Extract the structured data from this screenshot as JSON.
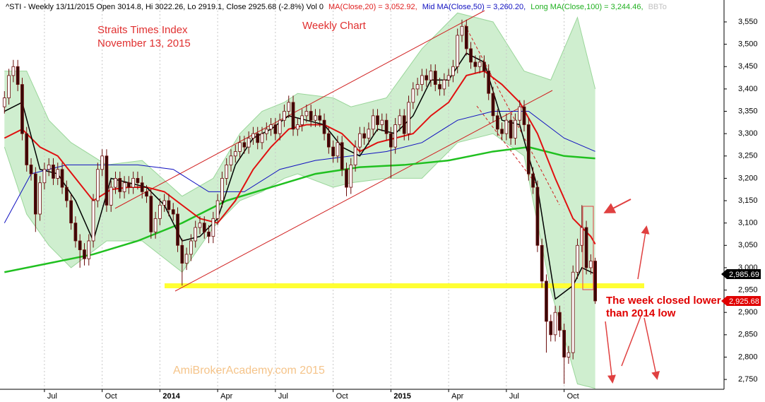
{
  "chart_data": {
    "type": "candlestick",
    "header": [
      {
        "text": "^STI - Weekly 13/11/2015 Open 3014.8, Hi 3022.26, Lo 2919.1, Close 2925.68 (-2.8%) Vol 0",
        "color": "#000000"
      },
      {
        "text": "MA(Close,20) = 3,052.92,",
        "color": "#e02020"
      },
      {
        "text": "Mid MA(Close,50) = 3,260.20,",
        "color": "#1010c0"
      },
      {
        "text": "Long MA(Close,100) = 3,244.46,",
        "color": "#20b020"
      },
      {
        "text": "BBTo",
        "color": "#c0c0c0"
      }
    ],
    "annotations": [
      "Straits Times Index",
      "November 13, 2015",
      "Weekly Chart",
      "The week closed lower",
      "than 2014 low",
      "AmiBrokerAcademy.com 2015"
    ],
    "xlim": [
      -1,
      162
    ],
    "ylim": [
      2728,
      3599
    ],
    "xticks": [
      {
        "value": 9,
        "label": "Jul"
      },
      {
        "value": 22,
        "label": "Oct"
      },
      {
        "value": 35,
        "label": "2014"
      },
      {
        "value": 48,
        "label": "Apr"
      },
      {
        "value": 61,
        "label": "Jul"
      },
      {
        "value": 74,
        "label": "Oct"
      },
      {
        "value": 87,
        "label": "2015"
      },
      {
        "value": 100,
        "label": "Apr"
      },
      {
        "value": 113,
        "label": "Jul"
      },
      {
        "value": 126,
        "label": "Oct"
      }
    ],
    "yticks": [
      {
        "value": 2750,
        "label": "2,750"
      },
      {
        "value": 2800,
        "label": "2,800"
      },
      {
        "value": 2850,
        "label": "2,850"
      },
      {
        "value": 2900,
        "label": "2,900"
      },
      {
        "value": 2950,
        "label": "2,950"
      },
      {
        "value": 3000,
        "label": "3,000"
      },
      {
        "value": 3050,
        "label": "3,050"
      },
      {
        "value": 3100,
        "label": "3,100"
      },
      {
        "value": 3150,
        "label": "3,150"
      },
      {
        "value": 3200,
        "label": "3,200"
      },
      {
        "value": 3250,
        "label": "3,250"
      },
      {
        "value": 3300,
        "label": "3,300"
      },
      {
        "value": 3350,
        "label": "3,350"
      },
      {
        "value": 3400,
        "label": "3,400"
      },
      {
        "value": 3450,
        "label": "3,450"
      },
      {
        "value": 3500,
        "label": "3,500"
      },
      {
        "value": 3550,
        "label": "3,550"
      }
    ],
    "price_labels": [
      {
        "value": 2985.69,
        "label": "2,985.69",
        "color": "#000000"
      },
      {
        "value": 2925.68,
        "label": "2,925.68",
        "color": "#e00000"
      }
    ],
    "candles": {
      "up_color": "#ffffff",
      "down_color": "#3a0808",
      "edge_color": "#6a0a0a",
      "open": [
        3360,
        3380,
        3430,
        3450,
        3410,
        3300,
        3230,
        3210,
        3120,
        3190,
        3220,
        3230,
        3200,
        3220,
        3180,
        3150,
        3100,
        3060,
        3040,
        3020,
        3060,
        3150,
        3220,
        3250,
        3140,
        3180,
        3200,
        3170,
        3190,
        3180,
        3200,
        3190,
        3170,
        3160,
        3080,
        3110,
        3140,
        3150,
        3130,
        3120,
        3050,
        3010,
        3030,
        3060,
        3090,
        3100,
        3080,
        3070,
        3110,
        3150,
        3200,
        3230,
        3250,
        3260,
        3280,
        3270,
        3290,
        3300,
        3280,
        3300,
        3310,
        3320,
        3300,
        3330,
        3350,
        3370,
        3310,
        3320,
        3340,
        3350,
        3330,
        3340,
        3330,
        3300,
        3270,
        3250,
        3280,
        3220,
        3180,
        3230,
        3270,
        3300,
        3290,
        3310,
        3340,
        3320,
        3330,
        3300,
        3270,
        3320,
        3340,
        3300,
        3370,
        3400,
        3410,
        3430,
        3420,
        3440,
        3410,
        3400,
        3420,
        3430,
        3450,
        3520,
        3540,
        3490,
        3460,
        3450,
        3460,
        3440,
        3390,
        3340,
        3310,
        3300,
        3330,
        3290,
        3330,
        3360,
        3320,
        3210,
        3180,
        3050,
        2970,
        2880,
        2850,
        2900,
        2860,
        2800,
        2810,
        2990,
        3050,
        3090,
        3000,
        3014.8
      ],
      "high": [
        3395,
        3445,
        3465,
        3465,
        3425,
        3315,
        3245,
        3225,
        3205,
        3235,
        3245,
        3245,
        3235,
        3235,
        3195,
        3165,
        3115,
        3075,
        3055,
        3075,
        3165,
        3235,
        3265,
        3265,
        3195,
        3215,
        3215,
        3205,
        3205,
        3215,
        3215,
        3205,
        3185,
        3175,
        3125,
        3155,
        3165,
        3165,
        3145,
        3135,
        3065,
        3045,
        3075,
        3105,
        3115,
        3115,
        3095,
        3125,
        3165,
        3215,
        3245,
        3265,
        3275,
        3295,
        3295,
        3305,
        3315,
        3315,
        3315,
        3325,
        3335,
        3335,
        3345,
        3365,
        3385,
        3385,
        3335,
        3355,
        3365,
        3365,
        3355,
        3355,
        3345,
        3315,
        3285,
        3295,
        3295,
        3235,
        3245,
        3285,
        3315,
        3315,
        3325,
        3355,
        3355,
        3345,
        3345,
        3315,
        3335,
        3355,
        3355,
        3385,
        3415,
        3425,
        3445,
        3445,
        3455,
        3455,
        3425,
        3435,
        3445,
        3465,
        3535,
        3555,
        3555,
        3505,
        3475,
        3475,
        3475,
        3455,
        3405,
        3355,
        3325,
        3345,
        3345,
        3345,
        3375,
        3375,
        3335,
        3225,
        3195,
        3065,
        2985,
        2895,
        2915,
        2915,
        2875,
        2825,
        3005,
        3065,
        3140,
        3105,
        3030,
        3022.26
      ],
      "low": [
        3345,
        3365,
        3415,
        3395,
        3285,
        3215,
        3195,
        3080,
        3105,
        3175,
        3205,
        3185,
        3185,
        3165,
        3135,
        3085,
        3045,
        3000,
        3005,
        3005,
        3045,
        3135,
        3205,
        3125,
        3125,
        3165,
        3155,
        3155,
        3165,
        3165,
        3175,
        3155,
        3145,
        3065,
        3065,
        3095,
        3125,
        3115,
        3105,
        3035,
        2960,
        2995,
        3015,
        3045,
        3075,
        3065,
        3055,
        3055,
        3095,
        3135,
        3185,
        3215,
        3235,
        3245,
        3255,
        3255,
        3275,
        3265,
        3265,
        3285,
        3295,
        3285,
        3285,
        3315,
        3335,
        3295,
        3295,
        3305,
        3325,
        3315,
        3315,
        3315,
        3285,
        3255,
        3235,
        3235,
        3205,
        3160,
        3165,
        3215,
        3255,
        3275,
        3275,
        3295,
        3305,
        3305,
        3285,
        3200,
        3255,
        3305,
        3285,
        3285,
        3355,
        3385,
        3395,
        3405,
        3405,
        3395,
        3385,
        3385,
        3405,
        3415,
        3435,
        3505,
        3475,
        3445,
        3435,
        3435,
        3425,
        3375,
        3325,
        3295,
        3285,
        3285,
        3275,
        3275,
        3315,
        3305,
        3195,
        3165,
        3035,
        2955,
        2810,
        2835,
        2835,
        2845,
        2740,
        2785,
        2795,
        2975,
        3035,
        2985,
        2985,
        2919.1
      ],
      "close": [
        3380,
        3430,
        3450,
        3410,
        3300,
        3230,
        3210,
        3120,
        3190,
        3220,
        3230,
        3200,
        3220,
        3180,
        3150,
        3100,
        3060,
        3040,
        3020,
        3060,
        3150,
        3220,
        3250,
        3140,
        3180,
        3200,
        3170,
        3190,
        3180,
        3200,
        3190,
        3170,
        3160,
        3080,
        3110,
        3140,
        3150,
        3130,
        3120,
        3050,
        3010,
        3030,
        3060,
        3090,
        3100,
        3080,
        3070,
        3110,
        3150,
        3200,
        3230,
        3250,
        3260,
        3280,
        3270,
        3290,
        3300,
        3280,
        3300,
        3310,
        3320,
        3300,
        3330,
        3350,
        3370,
        3310,
        3320,
        3340,
        3350,
        3330,
        3340,
        3330,
        3300,
        3270,
        3250,
        3280,
        3220,
        3180,
        3230,
        3270,
        3300,
        3290,
        3310,
        3340,
        3320,
        3330,
        3300,
        3270,
        3320,
        3340,
        3300,
        3370,
        3400,
        3410,
        3430,
        3420,
        3440,
        3410,
        3400,
        3420,
        3430,
        3450,
        3520,
        3540,
        3490,
        3460,
        3450,
        3460,
        3440,
        3390,
        3340,
        3310,
        3300,
        3330,
        3290,
        3330,
        3360,
        3320,
        3210,
        3180,
        3050,
        2970,
        2880,
        2850,
        2900,
        2860,
        2800,
        2810,
        2990,
        3050,
        3090,
        3000,
        3014.8,
        2925.68
      ]
    },
    "band": {
      "color": "#bfe8bf",
      "edge_color": "#9ad69a",
      "x": [
        0,
        5,
        10,
        15,
        23,
        31,
        40,
        47,
        53,
        58,
        63,
        66,
        74,
        78,
        86,
        94,
        102,
        110,
        117,
        123,
        129,
        133
      ],
      "upper": [
        3440,
        3440,
        3330,
        3280,
        3230,
        3240,
        3160,
        3200,
        3300,
        3350,
        3370,
        3390,
        3380,
        3360,
        3380,
        3490,
        3570,
        3550,
        3440,
        3420,
        3560,
        3400
      ],
      "lower": [
        3270,
        3120,
        3050,
        3000,
        3060,
        3060,
        2990,
        3090,
        3150,
        3170,
        3200,
        3210,
        3180,
        3190,
        3200,
        3200,
        3280,
        3300,
        3250,
        2950,
        2740,
        2730
      ]
    },
    "lines": [
      {
        "color": "#20c020",
        "width": 2.5,
        "x": [
          0,
          10,
          20,
          30,
          40,
          50,
          60,
          70,
          80,
          90,
          100,
          110,
          118,
          126,
          133
        ],
        "values": [
          2990,
          3010,
          3030,
          3060,
          3100,
          3150,
          3180,
          3210,
          3225,
          3230,
          3240,
          3260,
          3270,
          3250,
          3244.46
        ]
      },
      {
        "color": "#1010c0",
        "width": 1,
        "x": [
          0,
          6,
          14,
          22,
          30,
          38,
          46,
          54,
          62,
          70,
          78,
          86,
          94,
          102,
          110,
          118,
          126,
          133
        ],
        "values": [
          3100,
          3210,
          3230,
          3230,
          3230,
          3220,
          3170,
          3170,
          3220,
          3240,
          3250,
          3260,
          3280,
          3330,
          3350,
          3350,
          3290,
          3260.2
        ]
      },
      {
        "color": "#e01010",
        "width": 2,
        "x": [
          0,
          4,
          8,
          12,
          16,
          20,
          24,
          28,
          32,
          36,
          40,
          44,
          48,
          52,
          56,
          60,
          64,
          68,
          72,
          76,
          80,
          84,
          88,
          92,
          96,
          100,
          104,
          108,
          112,
          116,
          120,
          124,
          128,
          132,
          133
        ],
        "values": [
          3290,
          3310,
          3270,
          3250,
          3200,
          3150,
          3175,
          3180,
          3180,
          3170,
          3140,
          3110,
          3100,
          3150,
          3220,
          3270,
          3310,
          3320,
          3320,
          3300,
          3260,
          3280,
          3290,
          3300,
          3340,
          3370,
          3430,
          3440,
          3410,
          3370,
          3300,
          3200,
          3110,
          3070,
          3052.92
        ]
      },
      {
        "color": "#000000",
        "width": 1.5,
        "x": [
          0,
          4,
          8,
          12,
          16,
          20,
          24,
          28,
          32,
          36,
          40,
          44,
          48,
          52,
          56,
          60,
          64,
          68,
          72,
          76,
          80,
          84,
          88,
          92,
          96,
          100,
          104,
          108,
          112,
          116,
          120,
          124,
          128,
          130,
          133
        ],
        "values": [
          3350,
          3370,
          3220,
          3210,
          3150,
          3060,
          3200,
          3190,
          3180,
          3140,
          3060,
          3070,
          3110,
          3230,
          3290,
          3310,
          3340,
          3330,
          3320,
          3270,
          3250,
          3310,
          3300,
          3340,
          3420,
          3420,
          3480,
          3460,
          3330,
          3320,
          3180,
          2930,
          2960,
          3000,
          2985.69
        ]
      }
    ]
  }
}
